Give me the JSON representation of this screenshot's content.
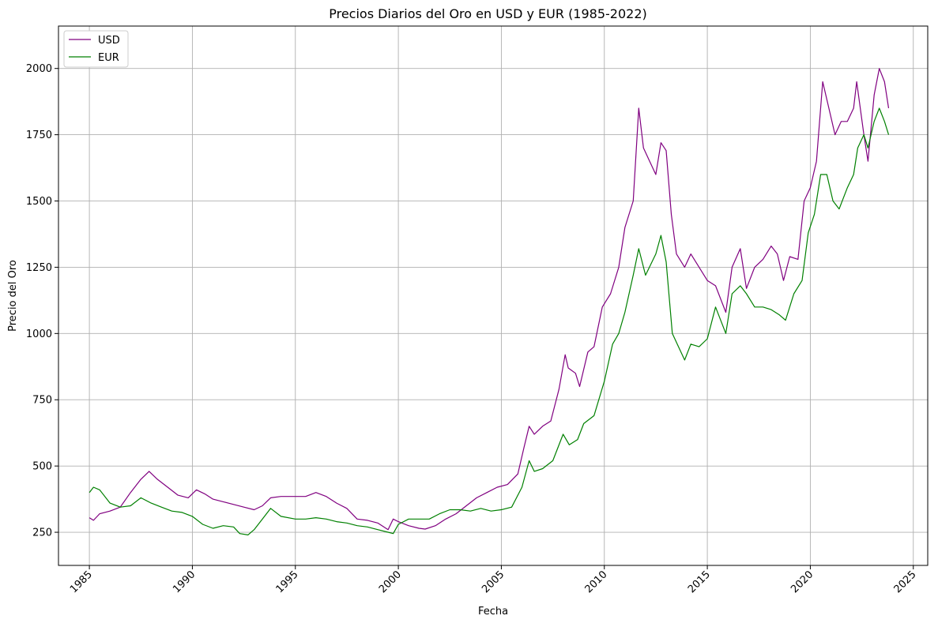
{
  "chart_data": {
    "type": "line",
    "title": "Precios Diarios del Oro en USD y EUR (1985-2022)",
    "xlabel": "Fecha",
    "ylabel": "Precio del Oro",
    "xlim": [
      1983.5,
      2025.7
    ],
    "ylim": [
      125,
      2160
    ],
    "x_ticks": [
      1985,
      1990,
      1995,
      2000,
      2005,
      2010,
      2015,
      2020,
      2025
    ],
    "x_tick_labels": [
      "1985",
      "1990",
      "1995",
      "2000",
      "2005",
      "2010",
      "2015",
      "2020",
      "2025"
    ],
    "y_ticks": [
      250,
      500,
      750,
      1000,
      1250,
      1500,
      1750,
      2000
    ],
    "y_tick_labels": [
      "250",
      "500",
      "750",
      "1000",
      "1250",
      "1500",
      "1750",
      "2000"
    ],
    "grid": true,
    "legend_position": "top-left",
    "series": [
      {
        "name": "USD",
        "color": "#800080",
        "x": [
          1985.0,
          1985.2,
          1985.5,
          1986.0,
          1986.5,
          1987.0,
          1987.5,
          1987.9,
          1988.3,
          1988.8,
          1989.3,
          1989.8,
          1990.2,
          1990.6,
          1991.0,
          1991.5,
          1992.0,
          1992.5,
          1993.0,
          1993.4,
          1993.8,
          1994.3,
          1995.0,
          1995.5,
          1996.0,
          1996.5,
          1997.0,
          1997.5,
          1998.0,
          1998.5,
          1999.0,
          1999.5,
          1999.75,
          2000.0,
          2000.5,
          2001.0,
          2001.3,
          2001.8,
          2002.3,
          2002.8,
          2003.3,
          2003.8,
          2004.3,
          2004.8,
          2005.3,
          2005.8,
          2006.1,
          2006.35,
          2006.6,
          2007.0,
          2007.4,
          2007.8,
          2008.1,
          2008.25,
          2008.6,
          2008.8,
          2009.2,
          2009.5,
          2009.9,
          2010.3,
          2010.7,
          2011.0,
          2011.4,
          2011.67,
          2011.9,
          2012.2,
          2012.5,
          2012.75,
          2013.0,
          2013.25,
          2013.5,
          2013.9,
          2014.2,
          2014.6,
          2015.0,
          2015.4,
          2015.9,
          2016.2,
          2016.6,
          2016.9,
          2017.3,
          2017.7,
          2018.1,
          2018.4,
          2018.7,
          2019.0,
          2019.4,
          2019.7,
          2020.0,
          2020.3,
          2020.6,
          2020.9,
          2021.2,
          2021.5,
          2021.8,
          2022.1,
          2022.25,
          2022.6,
          2022.8,
          2023.1,
          2023.35,
          2023.6,
          2023.8
        ],
        "values": [
          305,
          295,
          320,
          330,
          345,
          400,
          450,
          480,
          450,
          420,
          390,
          380,
          410,
          395,
          375,
          365,
          355,
          345,
          335,
          350,
          380,
          385,
          385,
          385,
          400,
          385,
          360,
          340,
          300,
          295,
          285,
          260,
          300,
          290,
          275,
          265,
          262,
          275,
          300,
          320,
          350,
          380,
          400,
          420,
          430,
          470,
          570,
          650,
          620,
          650,
          670,
          790,
          920,
          870,
          850,
          800,
          930,
          950,
          1100,
          1150,
          1250,
          1400,
          1500,
          1850,
          1700,
          1650,
          1600,
          1720,
          1690,
          1450,
          1300,
          1250,
          1300,
          1250,
          1200,
          1180,
          1080,
          1250,
          1320,
          1170,
          1250,
          1280,
          1330,
          1300,
          1200,
          1290,
          1280,
          1500,
          1550,
          1650,
          1950,
          1850,
          1750,
          1800,
          1800,
          1850,
          1950,
          1750,
          1650,
          1900,
          2000,
          1950,
          1850
        ]
      },
      {
        "name": "EUR",
        "color": "#008000",
        "x": [
          1985.0,
          1985.2,
          1985.5,
          1986.0,
          1986.5,
          1987.0,
          1987.5,
          1988.0,
          1988.5,
          1989.0,
          1989.5,
          1990.0,
          1990.5,
          1991.0,
          1991.5,
          1992.0,
          1992.3,
          1992.7,
          1993.0,
          1993.4,
          1993.8,
          1994.3,
          1995.0,
          1995.5,
          1996.0,
          1996.5,
          1997.0,
          1997.5,
          1998.0,
          1998.5,
          1999.0,
          1999.5,
          1999.75,
          2000.0,
          2000.5,
          2001.0,
          2001.5,
          2002.0,
          2002.5,
          2003.0,
          2003.5,
          2004.0,
          2004.5,
          2005.0,
          2005.5,
          2006.0,
          2006.35,
          2006.6,
          2007.0,
          2007.5,
          2008.0,
          2008.3,
          2008.7,
          2009.0,
          2009.5,
          2010.0,
          2010.4,
          2010.7,
          2011.0,
          2011.4,
          2011.67,
          2012.0,
          2012.5,
          2012.75,
          2013.0,
          2013.3,
          2013.6,
          2013.9,
          2014.2,
          2014.6,
          2015.0,
          2015.4,
          2015.9,
          2016.2,
          2016.6,
          2016.9,
          2017.3,
          2017.7,
          2018.1,
          2018.5,
          2018.8,
          2019.2,
          2019.6,
          2019.9,
          2020.2,
          2020.5,
          2020.8,
          2021.1,
          2021.4,
          2021.8,
          2022.1,
          2022.3,
          2022.6,
          2022.8,
          2023.1,
          2023.35,
          2023.6,
          2023.8
        ],
        "values": [
          400,
          420,
          410,
          360,
          345,
          350,
          380,
          360,
          345,
          330,
          325,
          310,
          280,
          265,
          275,
          270,
          245,
          240,
          260,
          300,
          340,
          310,
          300,
          300,
          305,
          300,
          290,
          285,
          275,
          270,
          260,
          250,
          245,
          280,
          300,
          300,
          300,
          320,
          335,
          335,
          330,
          340,
          330,
          335,
          345,
          420,
          520,
          480,
          490,
          520,
          620,
          580,
          600,
          660,
          690,
          820,
          960,
          1000,
          1080,
          1220,
          1320,
          1220,
          1300,
          1370,
          1270,
          1000,
          950,
          900,
          960,
          950,
          980,
          1100,
          1000,
          1150,
          1180,
          1150,
          1100,
          1100,
          1090,
          1070,
          1050,
          1150,
          1200,
          1380,
          1450,
          1600,
          1600,
          1500,
          1470,
          1550,
          1600,
          1700,
          1750,
          1700,
          1800,
          1850,
          1800,
          1750
        ]
      }
    ]
  }
}
